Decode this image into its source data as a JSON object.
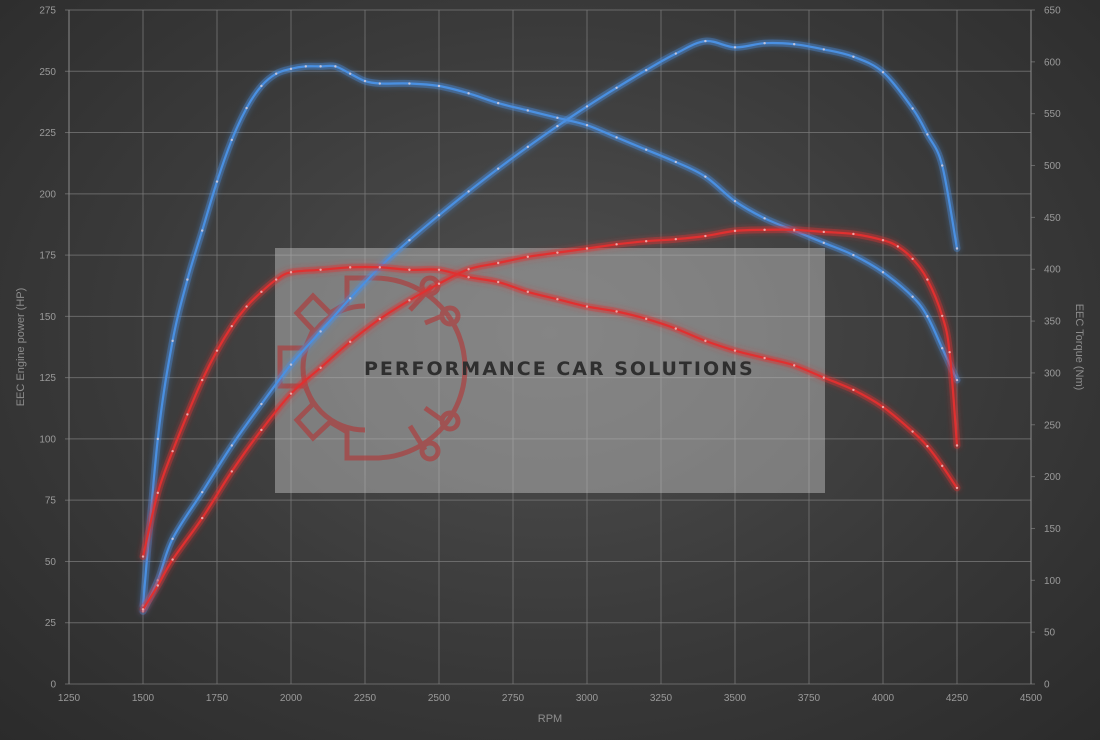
{
  "chart_data": {
    "type": "line",
    "xlabel": "RPM",
    "ylabel_left": "EEC Engine power (HP)",
    "ylabel_right": "EEC Torque (Nm)",
    "xlim": [
      1250,
      4500
    ],
    "ylim_left": [
      0,
      275
    ],
    "ylim_right": [
      0,
      650
    ],
    "x_ticks": [
      1250,
      1500,
      1750,
      2000,
      2250,
      2500,
      2750,
      3000,
      3250,
      3500,
      3750,
      4000,
      4250,
      4500
    ],
    "y_left_ticks": [
      0,
      25,
      50,
      75,
      100,
      125,
      150,
      175,
      200,
      225,
      250,
      275
    ],
    "y_right_ticks": [
      0,
      50,
      100,
      150,
      200,
      250,
      300,
      350,
      400,
      450,
      500,
      550,
      600,
      650
    ],
    "grid": true,
    "series": [
      {
        "color": "#4a90e2",
        "axis": "left",
        "points": [
          [
            1500,
            32
          ],
          [
            1550,
            100
          ],
          [
            1600,
            140
          ],
          [
            1650,
            165
          ],
          [
            1700,
            185
          ],
          [
            1750,
            205
          ],
          [
            1800,
            222
          ],
          [
            1850,
            235
          ],
          [
            1900,
            244
          ],
          [
            1950,
            249
          ],
          [
            2000,
            251
          ],
          [
            2050,
            252
          ],
          [
            2100,
            252
          ],
          [
            2150,
            252
          ],
          [
            2200,
            249
          ],
          [
            2250,
            246
          ],
          [
            2300,
            245
          ],
          [
            2400,
            245
          ],
          [
            2500,
            244
          ],
          [
            2600,
            241
          ],
          [
            2700,
            237
          ],
          [
            2800,
            234
          ],
          [
            2900,
            231
          ],
          [
            3000,
            228
          ],
          [
            3100,
            223
          ],
          [
            3200,
            218
          ],
          [
            3300,
            213
          ],
          [
            3400,
            207
          ],
          [
            3500,
            197
          ],
          [
            3600,
            190
          ],
          [
            3700,
            185
          ],
          [
            3800,
            180
          ],
          [
            3900,
            175
          ],
          [
            4000,
            168
          ],
          [
            4100,
            158
          ],
          [
            4150,
            150
          ],
          [
            4200,
            137
          ],
          [
            4250,
            124
          ]
        ]
      },
      {
        "color": "#4a90e2",
        "axis": "right",
        "points": [
          [
            1500,
            70
          ],
          [
            1550,
            100
          ],
          [
            1600,
            140
          ],
          [
            1700,
            185
          ],
          [
            1800,
            230
          ],
          [
            1900,
            270
          ],
          [
            2000,
            308
          ],
          [
            2100,
            340
          ],
          [
            2200,
            372
          ],
          [
            2300,
            402
          ],
          [
            2400,
            428
          ],
          [
            2500,
            452
          ],
          [
            2600,
            475
          ],
          [
            2700,
            497
          ],
          [
            2800,
            518
          ],
          [
            2900,
            538
          ],
          [
            3000,
            557
          ],
          [
            3100,
            575
          ],
          [
            3200,
            592
          ],
          [
            3300,
            608
          ],
          [
            3400,
            620
          ],
          [
            3500,
            614
          ],
          [
            3600,
            618
          ],
          [
            3700,
            617
          ],
          [
            3800,
            612
          ],
          [
            3900,
            605
          ],
          [
            4000,
            590
          ],
          [
            4100,
            555
          ],
          [
            4150,
            530
          ],
          [
            4200,
            500
          ],
          [
            4250,
            420
          ]
        ]
      },
      {
        "color": "#e03030",
        "axis": "left",
        "points": [
          [
            1500,
            52
          ],
          [
            1550,
            78
          ],
          [
            1600,
            95
          ],
          [
            1650,
            110
          ],
          [
            1700,
            124
          ],
          [
            1750,
            136
          ],
          [
            1800,
            146
          ],
          [
            1850,
            154
          ],
          [
            1900,
            160
          ],
          [
            1950,
            165
          ],
          [
            2000,
            168
          ],
          [
            2100,
            169
          ],
          [
            2200,
            170
          ],
          [
            2300,
            170
          ],
          [
            2400,
            169
          ],
          [
            2500,
            169
          ],
          [
            2600,
            166
          ],
          [
            2700,
            164
          ],
          [
            2800,
            160
          ],
          [
            2900,
            157
          ],
          [
            3000,
            154
          ],
          [
            3100,
            152
          ],
          [
            3200,
            149
          ],
          [
            3300,
            145
          ],
          [
            3400,
            140
          ],
          [
            3500,
            136
          ],
          [
            3600,
            133
          ],
          [
            3700,
            130
          ],
          [
            3800,
            125
          ],
          [
            3900,
            120
          ],
          [
            4000,
            113
          ],
          [
            4100,
            103
          ],
          [
            4150,
            97
          ],
          [
            4200,
            89
          ],
          [
            4250,
            80
          ]
        ]
      },
      {
        "color": "#e03030",
        "axis": "right",
        "points": [
          [
            1500,
            72
          ],
          [
            1550,
            95
          ],
          [
            1600,
            120
          ],
          [
            1700,
            160
          ],
          [
            1800,
            205
          ],
          [
            1900,
            245
          ],
          [
            2000,
            280
          ],
          [
            2100,
            305
          ],
          [
            2200,
            330
          ],
          [
            2300,
            352
          ],
          [
            2400,
            370
          ],
          [
            2500,
            386
          ],
          [
            2600,
            400
          ],
          [
            2700,
            406
          ],
          [
            2800,
            412
          ],
          [
            2900,
            416
          ],
          [
            3000,
            420
          ],
          [
            3100,
            424
          ],
          [
            3200,
            427
          ],
          [
            3300,
            429
          ],
          [
            3400,
            432
          ],
          [
            3500,
            437
          ],
          [
            3600,
            438
          ],
          [
            3700,
            438
          ],
          [
            3800,
            436
          ],
          [
            3900,
            434
          ],
          [
            4000,
            428
          ],
          [
            4050,
            422
          ],
          [
            4100,
            410
          ],
          [
            4150,
            390
          ],
          [
            4200,
            355
          ],
          [
            4225,
            320
          ],
          [
            4250,
            230
          ]
        ]
      }
    ]
  },
  "watermark": {
    "brand": "PERFORMANCE CAR SOLUTIONS"
  }
}
